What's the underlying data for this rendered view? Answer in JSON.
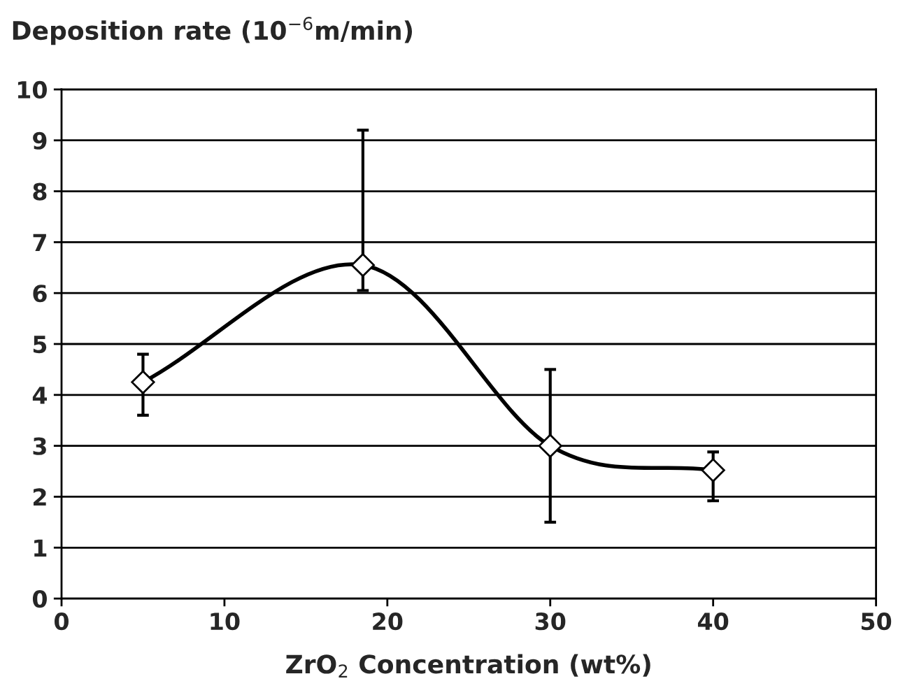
{
  "chart_data": {
    "type": "line",
    "ylabel": "Deposition rate (10$^{−6}$m/min)",
    "xlabel": "ZrO$_{2}$ Concentration (wt%)",
    "x": [
      5,
      18.5,
      30,
      40
    ],
    "series": [
      {
        "color": "#000000",
        "values": [
          4.25,
          6.55,
          3.0,
          2.52
        ],
        "errors": [
          [
            3.6,
            4.8
          ],
          [
            6.05,
            9.2
          ],
          [
            1.5,
            4.5
          ],
          [
            1.92,
            2.88
          ]
        ]
      }
    ],
    "xlim": [
      0,
      50
    ],
    "xticks": [
      0,
      10,
      20,
      30,
      40,
      50
    ],
    "ylim": [
      0,
      10
    ],
    "yticks": [
      0,
      1,
      2,
      3,
      4,
      5,
      6,
      7,
      8,
      9,
      10
    ],
    "grid": "y",
    "marker": "diamond",
    "line_style": "solid"
  }
}
